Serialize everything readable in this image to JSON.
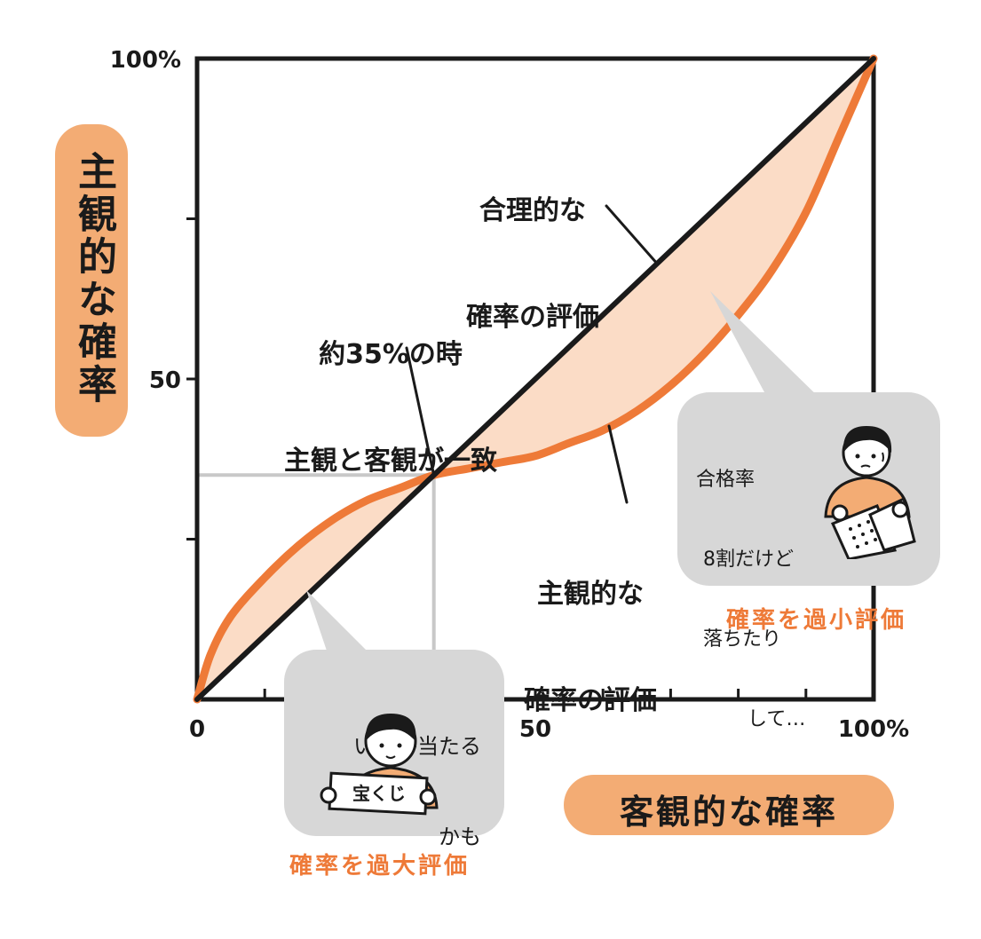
{
  "chart_data": {
    "type": "line",
    "series": [
      {
        "name": "合理的な確率の評価",
        "x": [
          0,
          100
        ],
        "y": [
          0,
          100
        ]
      },
      {
        "name": "主観的な確率の評価",
        "x": [
          0,
          2,
          5,
          10,
          15,
          20,
          25,
          30,
          35,
          40,
          45,
          50,
          55,
          60,
          65,
          70,
          75,
          80,
          85,
          90,
          95,
          100
        ],
        "y": [
          0,
          7,
          13,
          19,
          24,
          28,
          31,
          33,
          35,
          36,
          37,
          38,
          40,
          42,
          45,
          49,
          54,
          60,
          67,
          76,
          88,
          100
        ]
      }
    ],
    "xlim": [
      0,
      100
    ],
    "ylim": [
      0,
      100
    ],
    "x_tick_labels": {
      "0": "0",
      "50": "50",
      "100": "100%"
    },
    "y_tick_labels": {
      "50": "50",
      "100": "100%"
    },
    "crossover_x": 35,
    "xlabel": "客観的な確率",
    "ylabel": "主観的な確率",
    "colors": {
      "axis": "#1a1a1a",
      "subjective_line": "#ee7a38",
      "fill": "#fbdcc6",
      "guide": "#c8c8c8"
    }
  },
  "annotations": {
    "rational": [
      "合理的な",
      "確率の評価"
    ],
    "crossover": [
      "約35%の時",
      "主観と客観が一致"
    ],
    "subjective": [
      "主観的な",
      "確率の評価"
    ]
  },
  "bubble_over": {
    "speech": [
      "いつか当たる",
      "かも"
    ],
    "ticket_text": "宝くじ",
    "caption": "確率を過大評価",
    "icon": "person-with-lottery-ticket-icon"
  },
  "bubble_under": {
    "speech": [
      "合格率",
      "8割だけど",
      "落ちたり",
      "して…"
    ],
    "caption": "確率を過小評価",
    "icon": "worried-person-with-exam-icon"
  }
}
